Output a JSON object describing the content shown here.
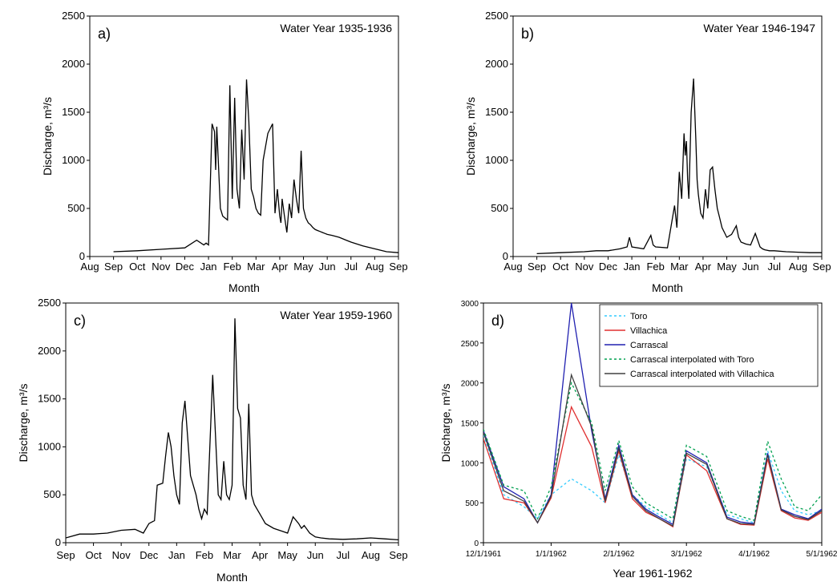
{
  "chart_data": [
    {
      "panel": "a)",
      "type": "line",
      "title": "Water Year 1935-1936",
      "xlabel": "Month",
      "ylabel": "Discharge, m³/s",
      "ylim": [
        0,
        2500
      ],
      "yticks": [
        0,
        500,
        1000,
        1500,
        2000,
        2500
      ],
      "xticks": [
        "Aug",
        "Sep",
        "Oct",
        "Nov",
        "Dec",
        "Jan",
        "Feb",
        "Mar",
        "Apr",
        "May",
        "Jun",
        "Jul",
        "Aug",
        "Sep"
      ],
      "series": [
        {
          "x": [
            1.0,
            2.0,
            3.0,
            4.0,
            4.5,
            4.8,
            4.9,
            5.0,
            5.15,
            5.25,
            5.3,
            5.35,
            5.5,
            5.6,
            5.8,
            5.9,
            6.0,
            6.1,
            6.2,
            6.3,
            6.4,
            6.5,
            6.6,
            6.7,
            6.8,
            6.9,
            7.0,
            7.1,
            7.2,
            7.3,
            7.5,
            7.7,
            7.8,
            7.9,
            8.0,
            8.05,
            8.1,
            8.2,
            8.3,
            8.4,
            8.5,
            8.6,
            8.7,
            8.8,
            8.9,
            9.0,
            9.1,
            9.2,
            9.3,
            9.4,
            9.5,
            9.6,
            9.7,
            9.8,
            9.9,
            10.0,
            10.2,
            10.5,
            10.8,
            11.0,
            11.5,
            12.0,
            12.5,
            13.0
          ],
          "y": [
            50,
            60,
            75,
            90,
            170,
            120,
            140,
            120,
            1380,
            1300,
            900,
            1350,
            500,
            420,
            380,
            1780,
            600,
            1650,
            700,
            500,
            1320,
            800,
            1840,
            1400,
            700,
            620,
            500,
            450,
            430,
            1000,
            1280,
            1380,
            450,
            700,
            420,
            350,
            600,
            420,
            250,
            550,
            400,
            800,
            600,
            450,
            1100,
            500,
            400,
            350,
            330,
            300,
            280,
            270,
            260,
            250,
            240,
            230,
            220,
            200,
            170,
            150,
            110,
            80,
            50,
            40
          ]
        }
      ]
    },
    {
      "panel": "b)",
      "type": "line",
      "title": "Water Year 1946-1947",
      "xlabel": "Month",
      "ylabel": "Discharge, m³/s",
      "ylim": [
        0,
        2500
      ],
      "yticks": [
        0,
        500,
        1000,
        1500,
        2000,
        2500
      ],
      "xticks": [
        "Aug",
        "Sep",
        "Oct",
        "Nov",
        "Dec",
        "Jan",
        "Feb",
        "Mar",
        "Apr",
        "May",
        "Jun",
        "Jul",
        "Aug",
        "Sep"
      ],
      "series": [
        {
          "x": [
            1.0,
            2.0,
            3.0,
            3.5,
            4.0,
            4.5,
            4.8,
            4.9,
            5.0,
            5.5,
            5.8,
            5.9,
            6.0,
            6.5,
            6.8,
            6.9,
            7.0,
            7.1,
            7.2,
            7.25,
            7.3,
            7.35,
            7.4,
            7.5,
            7.6,
            7.7,
            7.75,
            7.8,
            7.9,
            8.0,
            8.1,
            8.2,
            8.3,
            8.4,
            8.5,
            8.6,
            8.7,
            8.8,
            8.9,
            9.0,
            9.2,
            9.4,
            9.5,
            9.6,
            9.8,
            10.0,
            10.2,
            10.4,
            10.5,
            10.6,
            10.8,
            11.0,
            11.5,
            12.0,
            12.5,
            13.0
          ],
          "y": [
            30,
            40,
            50,
            60,
            60,
            80,
            100,
            200,
            100,
            80,
            220,
            120,
            100,
            90,
            530,
            300,
            880,
            600,
            1280,
            1050,
            1200,
            800,
            600,
            1500,
            1850,
            1200,
            800,
            650,
            450,
            400,
            700,
            500,
            900,
            930,
            700,
            500,
            400,
            300,
            250,
            200,
            230,
            320,
            200,
            150,
            130,
            120,
            240,
            100,
            80,
            70,
            60,
            60,
            50,
            45,
            40,
            40
          ]
        }
      ]
    },
    {
      "panel": "c)",
      "type": "line",
      "title": "Water Year 1959-1960",
      "xlabel": "Month",
      "ylabel": "Discharge, m³/s",
      "ylim": [
        0,
        2500
      ],
      "yticks": [
        0,
        500,
        1000,
        1500,
        2000,
        2500
      ],
      "xticks": [
        "Sep",
        "Oct",
        "Nov",
        "Dec",
        "Jan",
        "Feb",
        "Mar",
        "Apr",
        "May",
        "Jun",
        "Jul",
        "Aug",
        "Sep"
      ],
      "series": [
        {
          "x": [
            0.0,
            0.5,
            1.0,
            1.5,
            2.0,
            2.5,
            2.8,
            3.0,
            3.2,
            3.3,
            3.5,
            3.6,
            3.7,
            3.8,
            3.9,
            4.0,
            4.1,
            4.2,
            4.3,
            4.5,
            4.7,
            4.8,
            4.9,
            5.0,
            5.1,
            5.3,
            5.5,
            5.6,
            5.7,
            5.8,
            5.9,
            6.0,
            6.1,
            6.2,
            6.3,
            6.4,
            6.5,
            6.6,
            6.7,
            6.8,
            6.9,
            7.0,
            7.2,
            7.5,
            7.8,
            8.0,
            8.2,
            8.4,
            8.5,
            8.6,
            8.8,
            9.0,
            9.2,
            9.5,
            10.0,
            10.5,
            11.0,
            11.5,
            12.0
          ],
          "y": [
            50,
            90,
            90,
            100,
            130,
            140,
            100,
            200,
            230,
            600,
            620,
            900,
            1150,
            1000,
            700,
            500,
            400,
            1250,
            1480,
            700,
            500,
            350,
            250,
            350,
            300,
            1750,
            500,
            450,
            850,
            500,
            450,
            600,
            2340,
            1400,
            1300,
            600,
            450,
            1450,
            500,
            400,
            350,
            300,
            200,
            150,
            120,
            100,
            270,
            200,
            150,
            180,
            100,
            60,
            50,
            40,
            35,
            40,
            50,
            40,
            30
          ]
        }
      ]
    },
    {
      "panel": "d)",
      "type": "line",
      "xlabel": "Year 1961-1962",
      "ylabel": "Discharge, m³/s",
      "ylim": [
        0,
        3000
      ],
      "yticks": [
        0,
        500,
        1000,
        1500,
        2000,
        2500,
        3000
      ],
      "xticks": [
        "12/1/1961",
        "1/1/1962",
        "2/1/1962",
        "3/1/1962",
        "4/1/1962",
        "5/1/1962"
      ],
      "legend": "top-right",
      "x": [
        0,
        0.3,
        0.6,
        0.8,
        1,
        1.3,
        1.6,
        1.8,
        2,
        2.2,
        2.4,
        2.6,
        2.8,
        3,
        3.3,
        3.6,
        3.8,
        4,
        4.2,
        4.4,
        4.6,
        4.8,
        5
      ],
      "series": [
        {
          "name": "Toro",
          "color": "#33ccff",
          "dash": "3,3",
          "values": [
            1350,
            600,
            450,
            300,
            600,
            800,
            650,
            500,
            1100,
            600,
            450,
            350,
            250,
            1050,
            950,
            350,
            300,
            250,
            1150,
            650,
            400,
            350,
            400
          ]
        },
        {
          "name": "Villachica",
          "color": "#e03030",
          "dash": "",
          "values": [
            1300,
            550,
            500,
            250,
            560,
            1700,
            1200,
            500,
            1150,
            550,
            380,
            300,
            200,
            1100,
            900,
            300,
            230,
            220,
            1050,
            400,
            310,
            280,
            380
          ]
        },
        {
          "name": "Carrascal",
          "color": "#2020b0",
          "dash": "",
          "values": [
            1400,
            700,
            550,
            250,
            600,
            3000,
            1400,
            550,
            1220,
            600,
            420,
            320,
            230,
            1150,
            1000,
            320,
            260,
            240,
            1120,
            420,
            350,
            300,
            420
          ]
        },
        {
          "name": "Carrascal interpolated with Toro",
          "color": "#00a050",
          "dash": "3,3",
          "values": [
            1420,
            720,
            650,
            300,
            700,
            2000,
            1500,
            650,
            1280,
            700,
            500,
            400,
            300,
            1220,
            1080,
            400,
            330,
            280,
            1270,
            800,
            450,
            400,
            600
          ]
        },
        {
          "name": "Carrascal interpolated with Villachica",
          "color": "#404040",
          "dash": "",
          "values": [
            1380,
            650,
            520,
            250,
            580,
            2100,
            1450,
            520,
            1180,
            580,
            400,
            300,
            210,
            1120,
            980,
            300,
            240,
            230,
            1100,
            410,
            330,
            290,
            400
          ]
        }
      ]
    }
  ]
}
